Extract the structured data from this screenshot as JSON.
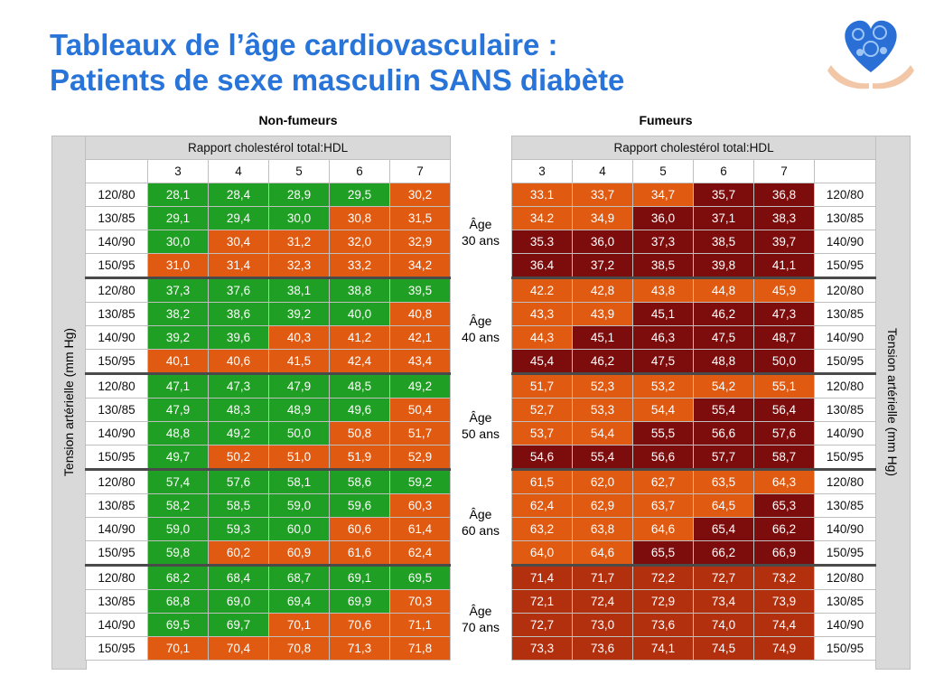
{
  "title": {
    "line1": "Tableaux de l’âge cardiovasculaire :",
    "line2": "Patients de sexe masculin SANS diabète"
  },
  "logo": {
    "icon": "heart-gears-in-hands-icon"
  },
  "groups": {
    "nonsmokers": "Non-fumeurs",
    "smokers": "Fumeurs"
  },
  "axis_label": "Tension artérielle (mm Hg)",
  "ratio_header": "Rapport cholestérol total:HDL",
  "ratio_values": [
    "3",
    "4",
    "5",
    "6",
    "7"
  ],
  "colors": {
    "green": "#1f9f23",
    "orange": "#e15a11",
    "dark_orange": "#b3300f",
    "maroon": "#7d0c0c",
    "header_gray": "#d9d9d9"
  },
  "age_groups": [
    {
      "age_label": "Âge",
      "age_value": "30 ans",
      "rows": [
        {
          "bp": "120/80",
          "nonsmoker": [
            "28,1",
            "28,4",
            "28,9",
            "29,5",
            "30,2"
          ],
          "smoker": [
            "33.1",
            "33,7",
            "34,7",
            "35,7",
            "36,8"
          ]
        },
        {
          "bp": "130/85",
          "nonsmoker": [
            "29,1",
            "29,4",
            "30,0",
            "30,8",
            "31,5"
          ],
          "smoker": [
            "34.2",
            "34,9",
            "36,0",
            "37,1",
            "38,3"
          ]
        },
        {
          "bp": "140/90",
          "nonsmoker": [
            "30,0",
            "30,4",
            "31,2",
            "32,0",
            "32,9"
          ],
          "smoker": [
            "35.3",
            "36,0",
            "37,3",
            "38,5",
            "39,7"
          ]
        },
        {
          "bp": "150/95",
          "nonsmoker": [
            "31,0",
            "31,4",
            "32,3",
            "33,2",
            "34,2"
          ],
          "smoker": [
            "36.4",
            "37,2",
            "38,5",
            "39,8",
            "41,1"
          ]
        }
      ]
    },
    {
      "age_label": "Âge",
      "age_value": "40 ans",
      "rows": [
        {
          "bp": "120/80",
          "nonsmoker": [
            "37,3",
            "37,6",
            "38,1",
            "38,8",
            "39,5"
          ],
          "smoker": [
            "42.2",
            "42,8",
            "43,8",
            "44,8",
            "45,9"
          ]
        },
        {
          "bp": "130/85",
          "nonsmoker": [
            "38,2",
            "38,6",
            "39,2",
            "40,0",
            "40,8"
          ],
          "smoker": [
            "43,3",
            "43,9",
            "45,1",
            "46,2",
            "47,3"
          ]
        },
        {
          "bp": "140/90",
          "nonsmoker": [
            "39,2",
            "39,6",
            "40,3",
            "41,2",
            "42,1"
          ],
          "smoker": [
            "44,3",
            "45,1",
            "46,3",
            "47,5",
            "48,7"
          ]
        },
        {
          "bp": "150/95",
          "nonsmoker": [
            "40,1",
            "40,6",
            "41,5",
            "42,4",
            "43,4"
          ],
          "smoker": [
            "45,4",
            "46,2",
            "47,5",
            "48,8",
            "50,0"
          ]
        }
      ]
    },
    {
      "age_label": "Âge",
      "age_value": "50 ans",
      "rows": [
        {
          "bp": "120/80",
          "nonsmoker": [
            "47,1",
            "47,3",
            "47,9",
            "48,5",
            "49,2"
          ],
          "smoker": [
            "51,7",
            "52,3",
            "53,2",
            "54,2",
            "55,1"
          ]
        },
        {
          "bp": "130/85",
          "nonsmoker": [
            "47,9",
            "48,3",
            "48,9",
            "49,6",
            "50,4"
          ],
          "smoker": [
            "52,7",
            "53,3",
            "54,4",
            "55,4",
            "56,4"
          ]
        },
        {
          "bp": "140/90",
          "nonsmoker": [
            "48,8",
            "49,2",
            "50,0",
            "50,8",
            "51,7"
          ],
          "smoker": [
            "53,7",
            "54,4",
            "55,5",
            "56,6",
            "57,6"
          ]
        },
        {
          "bp": "150/95",
          "nonsmoker": [
            "49,7",
            "50,2",
            "51,0",
            "51,9",
            "52,9"
          ],
          "smoker": [
            "54,6",
            "55,4",
            "56,6",
            "57,7",
            "58,7"
          ]
        }
      ]
    },
    {
      "age_label": "Âge",
      "age_value": "60 ans",
      "rows": [
        {
          "bp": "120/80",
          "nonsmoker": [
            "57,4",
            "57,6",
            "58,1",
            "58,6",
            "59,2"
          ],
          "smoker": [
            "61,5",
            "62,0",
            "62,7",
            "63,5",
            "64,3"
          ]
        },
        {
          "bp": "130/85",
          "nonsmoker": [
            "58,2",
            "58,5",
            "59,0",
            "59,6",
            "60,3"
          ],
          "smoker": [
            "62,4",
            "62,9",
            "63,7",
            "64,5",
            "65,3"
          ]
        },
        {
          "bp": "140/90",
          "nonsmoker": [
            "59,0",
            "59,3",
            "60,0",
            "60,6",
            "61,4"
          ],
          "smoker": [
            "63,2",
            "63,8",
            "64,6",
            "65,4",
            "66,2"
          ]
        },
        {
          "bp": "150/95",
          "nonsmoker": [
            "59,8",
            "60,2",
            "60,9",
            "61,6",
            "62,4"
          ],
          "smoker": [
            "64,0",
            "64,6",
            "65,5",
            "66,2",
            "66,9"
          ]
        }
      ]
    },
    {
      "age_label": "Âge",
      "age_value": "70 ans",
      "rows": [
        {
          "bp": "120/80",
          "nonsmoker": [
            "68,2",
            "68,4",
            "68,7",
            "69,1",
            "69,5"
          ],
          "smoker": [
            "71,4",
            "71,7",
            "72,2",
            "72,7",
            "73,2"
          ]
        },
        {
          "bp": "130/85",
          "nonsmoker": [
            "68,8",
            "69,0",
            "69,4",
            "69,9",
            "70,3"
          ],
          "smoker": [
            "72,1",
            "72,4",
            "72,9",
            "73,4",
            "73,9"
          ]
        },
        {
          "bp": "140/90",
          "nonsmoker": [
            "69,5",
            "69,7",
            "70,1",
            "70,6",
            "71,1"
          ],
          "smoker": [
            "72,7",
            "73,0",
            "73,6",
            "74,0",
            "74,4"
          ]
        },
        {
          "bp": "150/95",
          "nonsmoker": [
            "70,1",
            "70,4",
            "70,8",
            "71,3",
            "71,8"
          ],
          "smoker": [
            "73,3",
            "73,6",
            "74,1",
            "74,5",
            "74,9"
          ]
        }
      ]
    }
  ],
  "color_map": {
    "nonsmoker": [
      [
        "green",
        "green",
        "green",
        "green",
        "orange"
      ],
      [
        "green",
        "green",
        "green",
        "orange",
        "orange"
      ],
      [
        "green",
        "orange",
        "orange",
        "orange",
        "orange"
      ],
      [
        "orange",
        "orange",
        "orange",
        "orange",
        "orange"
      ],
      [
        "green",
        "green",
        "green",
        "green",
        "green"
      ],
      [
        "green",
        "green",
        "green",
        "green",
        "orange"
      ],
      [
        "green",
        "green",
        "orange",
        "orange",
        "orange"
      ],
      [
        "orange",
        "orange",
        "orange",
        "orange",
        "orange"
      ],
      [
        "green",
        "green",
        "green",
        "green",
        "green"
      ],
      [
        "green",
        "green",
        "green",
        "green",
        "orange"
      ],
      [
        "green",
        "green",
        "green",
        "orange",
        "orange"
      ],
      [
        "green",
        "orange",
        "orange",
        "orange",
        "orange"
      ],
      [
        "green",
        "green",
        "green",
        "green",
        "green"
      ],
      [
        "green",
        "green",
        "green",
        "green",
        "orange"
      ],
      [
        "green",
        "green",
        "green",
        "orange",
        "orange"
      ],
      [
        "green",
        "orange",
        "orange",
        "orange",
        "orange"
      ],
      [
        "green",
        "green",
        "green",
        "green",
        "green"
      ],
      [
        "green",
        "green",
        "green",
        "green",
        "orange"
      ],
      [
        "green",
        "green",
        "orange",
        "orange",
        "orange"
      ],
      [
        "orange",
        "orange",
        "orange",
        "orange",
        "orange"
      ]
    ],
    "smoker": [
      [
        "orange",
        "orange",
        "orange",
        "maroon",
        "maroon"
      ],
      [
        "orange",
        "orange",
        "maroon",
        "maroon",
        "maroon"
      ],
      [
        "maroon",
        "maroon",
        "maroon",
        "maroon",
        "maroon"
      ],
      [
        "maroon",
        "maroon",
        "maroon",
        "maroon",
        "maroon"
      ],
      [
        "orange",
        "orange",
        "orange",
        "orange",
        "orange"
      ],
      [
        "orange",
        "orange",
        "maroon",
        "maroon",
        "maroon"
      ],
      [
        "orange",
        "maroon",
        "maroon",
        "maroon",
        "maroon"
      ],
      [
        "maroon",
        "maroon",
        "maroon",
        "maroon",
        "maroon"
      ],
      [
        "orange",
        "orange",
        "orange",
        "orange",
        "orange"
      ],
      [
        "orange",
        "orange",
        "orange",
        "maroon",
        "maroon"
      ],
      [
        "orange",
        "orange",
        "maroon",
        "maroon",
        "maroon"
      ],
      [
        "maroon",
        "maroon",
        "maroon",
        "maroon",
        "maroon"
      ],
      [
        "orange",
        "orange",
        "orange",
        "orange",
        "orange"
      ],
      [
        "orange",
        "orange",
        "orange",
        "orange",
        "maroon"
      ],
      [
        "orange",
        "orange",
        "orange",
        "maroon",
        "maroon"
      ],
      [
        "orange",
        "orange",
        "maroon",
        "maroon",
        "maroon"
      ],
      [
        "dark",
        "dark",
        "dark",
        "dark",
        "dark"
      ],
      [
        "dark",
        "dark",
        "dark",
        "dark",
        "dark"
      ],
      [
        "dark",
        "dark",
        "dark",
        "dark",
        "dark"
      ],
      [
        "dark",
        "dark",
        "dark",
        "dark",
        "dark"
      ]
    ]
  }
}
